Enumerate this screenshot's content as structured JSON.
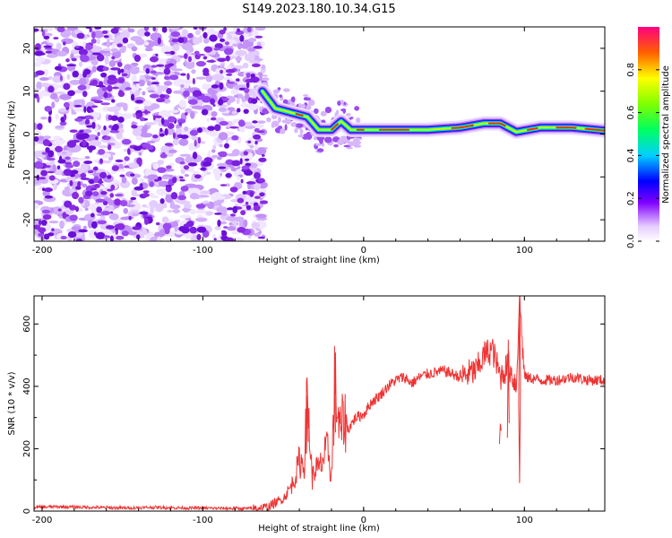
{
  "figure": {
    "title": "S149.2023.180.10.34.G15"
  },
  "chart_data": [
    {
      "type": "heatmap",
      "xlabel": "Height of straight line (km)",
      "ylabel": "Frequency (Hz)",
      "xlim": [
        -205,
        150
      ],
      "ylim": [
        -25,
        25
      ],
      "xticks": [
        -200,
        -100,
        0,
        100
      ],
      "yticks": [
        -20,
        -10,
        0,
        10,
        20
      ],
      "colorbar": {
        "label": "Normalized spectral amplitude",
        "range": [
          0,
          1
        ],
        "ticks": [
          0.0,
          0.2,
          0.4,
          0.6,
          0.8
        ],
        "tick_labels": [
          "0.0",
          "0.2",
          "0.4",
          "0.6",
          "0.8"
        ]
      },
      "ridge": {
        "x": [
          -63,
          -55,
          -45,
          -35,
          -28,
          -20,
          -14,
          -8,
          0,
          20,
          40,
          60,
          75,
          85,
          95,
          110,
          130,
          150
        ],
        "freq": [
          10,
          6,
          5,
          4,
          1,
          1,
          3,
          1,
          1,
          1,
          1,
          1.5,
          2.5,
          2.5,
          0.5,
          1.5,
          1.5,
          0.8
        ]
      },
      "noise_region": {
        "x": [
          -205,
          -62
        ],
        "freq": [
          -25,
          25
        ]
      }
    },
    {
      "type": "line",
      "xlabel": "Height of straight line (km)",
      "ylabel": "SNR (10 * v/v)",
      "xlim": [
        -205,
        150
      ],
      "ylim": [
        0,
        690
      ],
      "xticks": [
        -200,
        -100,
        0,
        100
      ],
      "yticks": [
        0,
        200,
        400,
        600
      ],
      "line_color": "#ee3333",
      "series": [
        {
          "x": [
            -205,
            -190,
            -170,
            -150,
            -130,
            -110,
            -90,
            -70,
            -60,
            -50,
            -45,
            -42,
            -40,
            -37,
            -35,
            -32,
            -30,
            -28,
            -25,
            -22,
            -20,
            -18,
            -15,
            -12,
            -10,
            -5,
            0,
            5,
            10,
            15,
            20,
            25,
            30,
            35,
            40,
            50,
            60,
            70,
            75,
            80,
            85,
            90,
            95,
            97,
            100,
            110,
            120,
            130,
            140,
            150
          ],
          "y": [
            12,
            14,
            12,
            10,
            12,
            10,
            9,
            8,
            12,
            40,
            80,
            120,
            160,
            150,
            370,
            100,
            140,
            130,
            170,
            200,
            100,
            420,
            250,
            300,
            260,
            300,
            310,
            350,
            370,
            400,
            420,
            430,
            410,
            430,
            440,
            450,
            430,
            450,
            500,
            520,
            430,
            470,
            400,
            690,
            430,
            420,
            420,
            430,
            420,
            420
          ]
        }
      ]
    }
  ]
}
